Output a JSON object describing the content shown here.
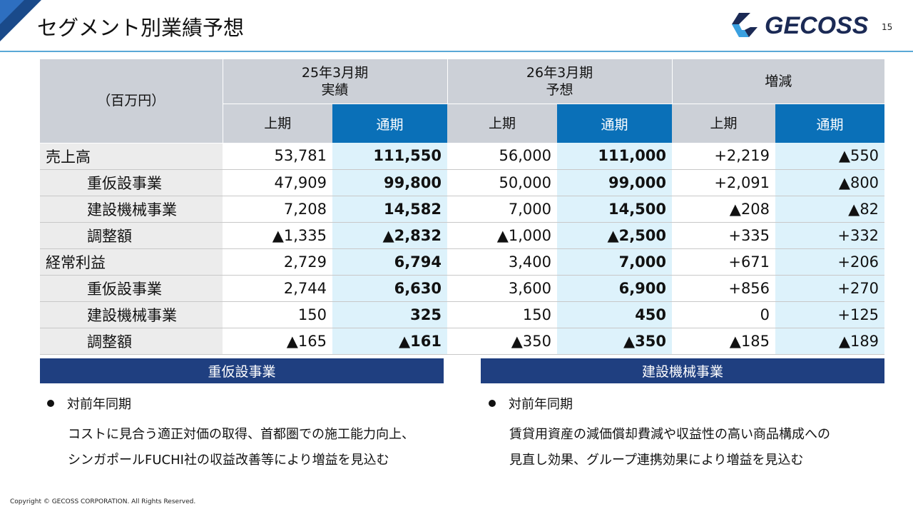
{
  "slide": {
    "title": "セグメント別業績予想",
    "page_number": "15",
    "logo_text": "GECOSS",
    "copyright": "Copyright © GECOSS CORPORATION. All Rights Reserved."
  },
  "table": {
    "unit_label": "（百万円）",
    "groups": [
      {
        "line1": "25年3月期",
        "line2": "実績"
      },
      {
        "line1": "26年3月期",
        "line2": "予想"
      },
      {
        "line1": "増減",
        "line2": ""
      }
    ],
    "subheaders": [
      "上期",
      "通期",
      "上期",
      "通期",
      "上期",
      "通期"
    ],
    "rows": [
      {
        "label": "売上高",
        "values": [
          "53,781",
          "111,550",
          "56,000",
          "111,000",
          "+2,219",
          "▲550"
        ]
      },
      {
        "label": "重仮設事業",
        "values": [
          "47,909",
          "99,800",
          "50,000",
          "99,000",
          "+2,091",
          "▲800"
        ]
      },
      {
        "label": "建設機械事業",
        "values": [
          "7,208",
          "14,582",
          "7,000",
          "14,500",
          "▲208",
          "▲82"
        ]
      },
      {
        "label": "調整額",
        "values": [
          "▲1,335",
          "▲2,832",
          "▲1,000",
          "▲2,500",
          "+335",
          "+332"
        ]
      },
      {
        "label": "経常利益",
        "values": [
          "2,729",
          "6,794",
          "3,400",
          "7,000",
          "+671",
          "+206"
        ]
      },
      {
        "label": "重仮設事業",
        "values": [
          "2,744",
          "6,630",
          "3,600",
          "6,900",
          "+856",
          "+270"
        ]
      },
      {
        "label": "建設機械事業",
        "values": [
          "150",
          "325",
          "150",
          "450",
          "0",
          "+125"
        ]
      },
      {
        "label": "調整額",
        "values": [
          "▲165",
          "▲161",
          "▲350",
          "▲350",
          "▲185",
          "▲189"
        ]
      }
    ]
  },
  "segments": [
    {
      "header": "重仮設事業",
      "bullet": "対前年同期",
      "lines": [
        "コストに見合う適正対価の取得、首都圏での施工能力向上、",
        "シンガポールFUCHI社の収益改善等により増益を見込む"
      ]
    },
    {
      "header": "建設機械事業",
      "bullet": "対前年同期",
      "lines": [
        "賃貸用資産の減価償却費減や収益性の高い商品構成への",
        "見直し効果、グループ連携効果により増益を見込む"
      ]
    }
  ]
}
